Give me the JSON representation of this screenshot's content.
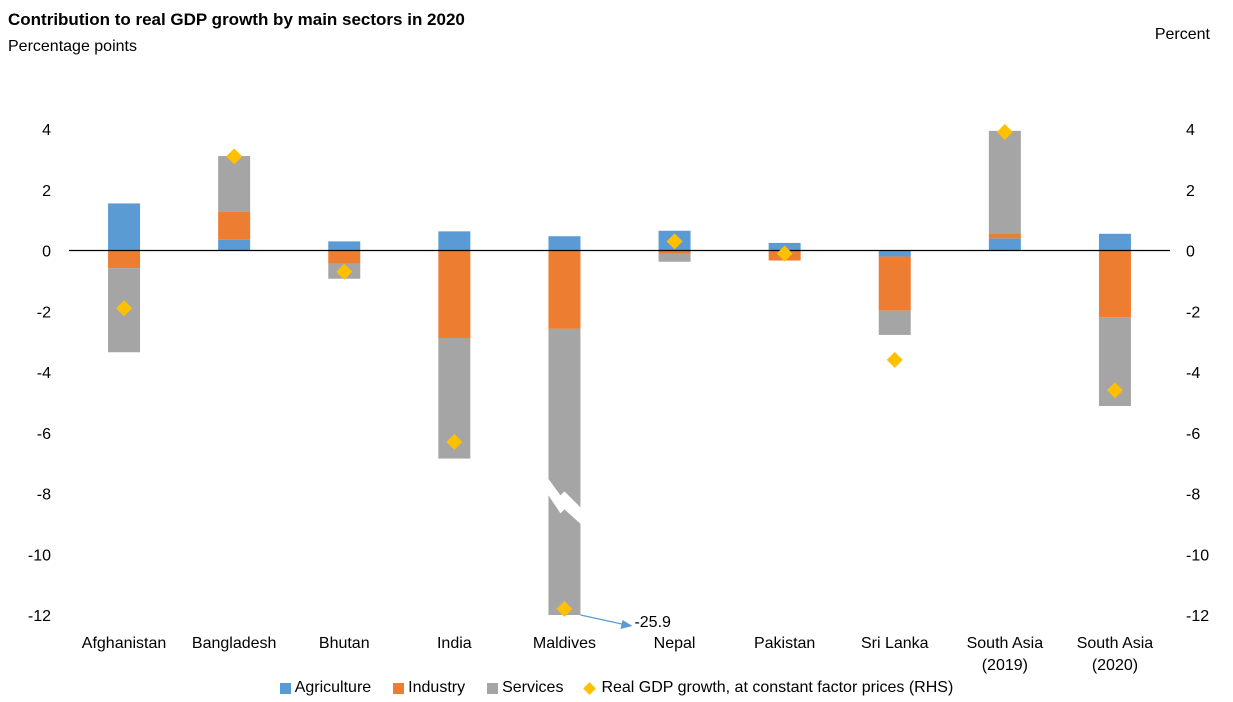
{
  "header": {
    "title": "Contribution to real GDP growth by main sectors in 2020",
    "subtitle": "Percentage points",
    "rhs_unit": "Percent"
  },
  "colors": {
    "agriculture": "#5B9BD5",
    "industry": "#ED7D31",
    "services": "#A5A5A5",
    "gdp": "#FFC000"
  },
  "chart_data": {
    "type": "bar",
    "stacked": true,
    "title": "Contribution to real GDP growth by main sectors in 2020",
    "ylabel": "Percentage points",
    "y2label": "Percent",
    "ylim": [
      -12,
      4
    ],
    "y2lim": [
      -12,
      4
    ],
    "yticks": [
      "4",
      "2",
      "0",
      "-2",
      "-4",
      "-6",
      "-8",
      "-10",
      "-12"
    ],
    "categories": [
      "Afghanistan",
      "Bangladesh",
      "Bhutan",
      "India",
      "Maldives",
      "Nepal",
      "Pakistan",
      "Sri Lanka",
      "South Asia (2019)",
      "South Asia (2020)"
    ],
    "category_lines": [
      [
        "Afghanistan"
      ],
      [
        "Bangladesh"
      ],
      [
        "Bhutan"
      ],
      [
        "India"
      ],
      [
        "Maldives"
      ],
      [
        "Nepal"
      ],
      [
        "Pakistan"
      ],
      [
        "Sri Lanka"
      ],
      [
        "South Asia",
        "(2019)"
      ],
      [
        "South Asia",
        "(2020)"
      ]
    ],
    "series": [
      {
        "name": "Agriculture",
        "type": "bar",
        "values": [
          1.55,
          0.35,
          0.3,
          0.63,
          0.47,
          0.65,
          0.25,
          -0.2,
          0.4,
          0.55
        ]
      },
      {
        "name": "Industry",
        "type": "bar",
        "values": [
          -0.58,
          0.93,
          -0.43,
          -2.88,
          -2.58,
          -0.1,
          -0.33,
          -1.78,
          0.17,
          -2.2
        ]
      },
      {
        "name": "Services",
        "type": "bar",
        "values": [
          -2.77,
          1.83,
          -0.5,
          -3.97,
          -23.3,
          -0.27,
          0.0,
          -0.8,
          3.37,
          -2.92
        ]
      },
      {
        "name": "Real GDP growth, at constant factor prices (RHS)",
        "type": "scatter",
        "axis": "right",
        "values": [
          -1.9,
          3.1,
          -0.7,
          -6.3,
          -11.8,
          0.3,
          -0.1,
          -3.6,
          3.9,
          -4.6
        ]
      }
    ],
    "annotations": [
      {
        "category": "Maldives",
        "text": "-25.9"
      }
    ],
    "axis_break": {
      "category": "Maldives"
    },
    "legend_position": "bottom",
    "grid": false
  }
}
